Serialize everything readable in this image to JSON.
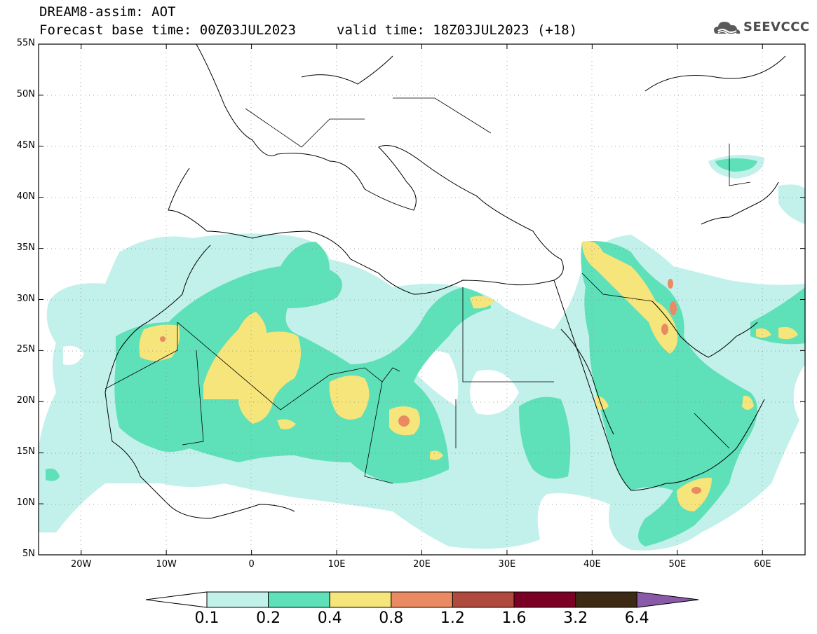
{
  "header": {
    "title_line1": "DREAM8-assim: AOT",
    "title_line2": "Forecast base time: 00Z03JUL2023",
    "valid_time": "valid time: 18Z03JUL2023 (+18)",
    "logo_text": "SEEVCCC"
  },
  "map": {
    "region": {
      "lon_min": -25,
      "lon_max": 65,
      "lat_min": 5,
      "lat_max": 55
    },
    "lat_labels": [
      "55N",
      "50N",
      "45N",
      "40N",
      "35N",
      "30N",
      "25N",
      "20N",
      "15N",
      "10N",
      "5N"
    ],
    "lon_labels": [
      "20W",
      "10W",
      "0",
      "10E",
      "20E",
      "30E",
      "40E",
      "50E",
      "60E"
    ],
    "lat_values": [
      55,
      50,
      45,
      40,
      35,
      30,
      25,
      20,
      15,
      10,
      5
    ],
    "lon_values": [
      -20,
      -10,
      0,
      10,
      20,
      30,
      40,
      50,
      60
    ]
  },
  "colorbar": {
    "labels": [
      "0.1",
      "0.2",
      "0.4",
      "0.8",
      "1.2",
      "1.6",
      "3.2",
      "6.4"
    ],
    "colors": [
      "#ffffff",
      "#c2f0ea",
      "#5ee0b8",
      "#f5e57a",
      "#e98a62",
      "#b04a3e",
      "#7a0026",
      "#3d2a14",
      "#8a5aa8"
    ]
  },
  "colors": {
    "aot_01": "#c2f0ea",
    "aot_02": "#5ee0b8",
    "aot_04": "#f5e57a",
    "aot_08": "#e98a62"
  }
}
